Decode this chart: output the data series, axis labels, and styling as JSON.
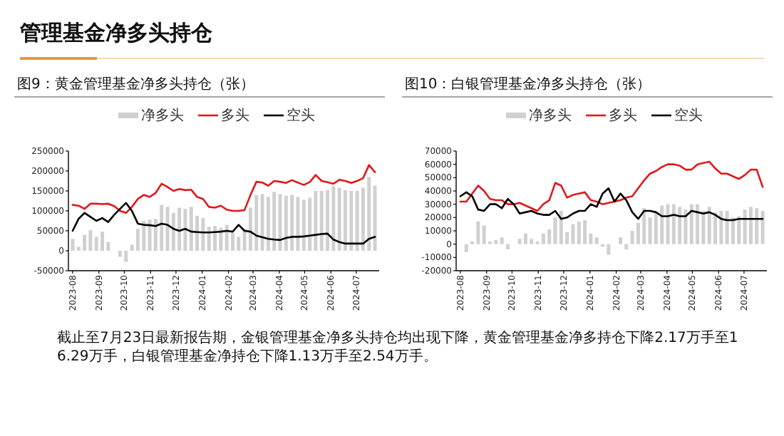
{
  "chart_data": [
    {
      "type": "other",
      "title": "管理基金净多头持仓",
      "annotations": [
        "截止至7月23日最新报告期，金银管理基金净多头持仓均出现下降，黄金管理基金净多持仓下降2.17万手至16.29万手，白银管理基金净持仓下降1.13万手至2.54万手。"
      ]
    },
    {
      "type": "bar",
      "title": "图9：黄金管理基金净多头持仓（张）",
      "legend": "top",
      "x": [
        "2023-08-01",
        "2023-08-08",
        "2023-08-15",
        "2023-08-22",
        "2023-08-29",
        "2023-09-05",
        "2023-09-12",
        "2023-09-19",
        "2023-09-26",
        "2023-10-03",
        "2023-10-10",
        "2023-10-17",
        "2023-10-24",
        "2023-10-31",
        "2023-11-07",
        "2023-11-14",
        "2023-11-21",
        "2023-11-28",
        "2023-12-05",
        "2023-12-12",
        "2023-12-19",
        "2023-12-26",
        "2024-01-02",
        "2024-01-09",
        "2024-01-16",
        "2024-01-23",
        "2024-01-30",
        "2024-02-06",
        "2024-02-13",
        "2024-02-20",
        "2024-02-27",
        "2024-03-05",
        "2024-03-12",
        "2024-03-19",
        "2024-03-26",
        "2024-04-02",
        "2024-04-09",
        "2024-04-16",
        "2024-04-23",
        "2024-04-30",
        "2024-05-07",
        "2024-05-14",
        "2024-05-21",
        "2024-05-28",
        "2024-06-04",
        "2024-06-11",
        "2024-06-18",
        "2024-06-25",
        "2024-07-02",
        "2024-07-09",
        "2024-07-16",
        "2024-07-23"
      ],
      "xlim": [
        "2023-07-27",
        "2024-07-28"
      ],
      "xticks": [
        "2023-08",
        "2023-09",
        "2023-10",
        "2023-11",
        "2023-12",
        "2024-01",
        "2024-02",
        "2024-03",
        "2024-04",
        "2024-05",
        "2024-06",
        "2024-07"
      ],
      "ylim": [
        -50000,
        250000
      ],
      "yticks": [
        -50000,
        0,
        50000,
        100000,
        150000,
        200000,
        250000
      ],
      "series": [
        {
          "name": "净多头",
          "type": "bar",
          "color": "#d0d0d0",
          "values": [
            30000,
            10000,
            40000,
            52000,
            35000,
            48000,
            22000,
            null,
            -15000,
            -28000,
            15000,
            55000,
            75000,
            78000,
            80000,
            115000,
            110000,
            95000,
            108000,
            105000,
            110000,
            88000,
            82000,
            60000,
            62000,
            58000,
            65000,
            45000,
            35000,
            55000,
            108000,
            140000,
            142000,
            135000,
            148000,
            142000,
            138000,
            140000,
            135000,
            128000,
            133000,
            150000,
            150000,
            152000,
            162000,
            158000,
            152000,
            150000,
            150000,
            158000,
            185000,
            163000
          ]
        },
        {
          "name": "多头",
          "type": "line",
          "color": "#e0191b",
          "values": [
            115000,
            113000,
            105000,
            118000,
            118000,
            117000,
            118000,
            112000,
            100000,
            95000,
            110000,
            130000,
            140000,
            135000,
            145000,
            168000,
            160000,
            150000,
            155000,
            152000,
            153000,
            135000,
            130000,
            110000,
            108000,
            113000,
            103000,
            100000,
            100000,
            102000,
            140000,
            173000,
            171000,
            163000,
            175000,
            173000,
            170000,
            177000,
            171000,
            165000,
            172000,
            190000,
            175000,
            172000,
            168000,
            178000,
            175000,
            170000,
            175000,
            182000,
            215000,
            197000
          ]
        },
        {
          "name": "空头",
          "type": "line",
          "color": "#000000",
          "values": [
            50000,
            80000,
            95000,
            85000,
            75000,
            82000,
            72000,
            90000,
            105000,
            120000,
            100000,
            68000,
            65000,
            64000,
            62000,
            68000,
            65000,
            55000,
            50000,
            55000,
            48000,
            47000,
            46000,
            46000,
            47000,
            48000,
            50000,
            48000,
            65000,
            50000,
            48000,
            38000,
            34000,
            30000,
            28000,
            27000,
            32000,
            35000,
            35000,
            36000,
            38000,
            40000,
            42000,
            43000,
            28000,
            22000,
            18000,
            18000,
            18000,
            18000,
            30000,
            35000
          ]
        }
      ]
    },
    {
      "type": "bar",
      "title": "图10：白银管理基金净多头持仓（张）",
      "legend": "top",
      "x": [
        "2023-08-01",
        "2023-08-08",
        "2023-08-15",
        "2023-08-22",
        "2023-08-29",
        "2023-09-05",
        "2023-09-12",
        "2023-09-19",
        "2023-09-26",
        "2023-10-03",
        "2023-10-10",
        "2023-10-17",
        "2023-10-24",
        "2023-10-31",
        "2023-11-07",
        "2023-11-14",
        "2023-11-21",
        "2023-11-28",
        "2023-12-05",
        "2023-12-12",
        "2023-12-19",
        "2023-12-26",
        "2024-01-02",
        "2024-01-09",
        "2024-01-16",
        "2024-01-23",
        "2024-01-30",
        "2024-02-06",
        "2024-02-13",
        "2024-02-20",
        "2024-02-27",
        "2024-03-05",
        "2024-03-12",
        "2024-03-19",
        "2024-03-26",
        "2024-04-02",
        "2024-04-09",
        "2024-04-16",
        "2024-04-23",
        "2024-04-30",
        "2024-05-07",
        "2024-05-14",
        "2024-05-21",
        "2024-05-28",
        "2024-06-04",
        "2024-06-11",
        "2024-06-18",
        "2024-06-25",
        "2024-07-02",
        "2024-07-09",
        "2024-07-16",
        "2024-07-23"
      ],
      "xlim": [
        "2023-07-27",
        "2024-07-28"
      ],
      "xticks": [
        "2023-08",
        "2023-09",
        "2023-10",
        "2023-11",
        "2023-12",
        "2024-01",
        "2024-02",
        "2024-03",
        "2024-04",
        "2024-05",
        "2024-06",
        "2024-07"
      ],
      "ylim": [
        -20000,
        70000
      ],
      "yticks": [
        -20000,
        -10000,
        0,
        10000,
        20000,
        30000,
        40000,
        50000,
        60000,
        70000
      ],
      "series": [
        {
          "name": "净多头",
          "type": "bar",
          "color": "#d0d0d0",
          "values": [
            0,
            -6000,
            2000,
            17000,
            14000,
            2000,
            3000,
            5000,
            -4000,
            0,
            4000,
            8000,
            4000,
            2000,
            8000,
            11000,
            20000,
            25000,
            9000,
            15000,
            17000,
            18000,
            8000,
            5000,
            -2000,
            -8000,
            0,
            5000,
            -4000,
            10000,
            16000,
            27000,
            20000,
            24000,
            29000,
            30000,
            30000,
            28000,
            26000,
            30000,
            30000,
            25000,
            28000,
            24000,
            25000,
            25000,
            20000,
            21000,
            26000,
            28000,
            27000,
            25000
          ]
        },
        {
          "name": "多头",
          "type": "line",
          "color": "#e0191b",
          "values": [
            32000,
            32000,
            38000,
            44000,
            40000,
            34000,
            33000,
            33000,
            30000,
            30000,
            31000,
            29000,
            27000,
            25000,
            30000,
            33000,
            46000,
            44000,
            35000,
            37000,
            38000,
            39000,
            33000,
            32000,
            30000,
            31000,
            32000,
            33000,
            35000,
            36000,
            42000,
            48000,
            53000,
            55000,
            58000,
            60000,
            60000,
            59000,
            56000,
            56000,
            60000,
            61000,
            62000,
            57000,
            53000,
            53000,
            51000,
            49000,
            52000,
            56000,
            56000,
            43000
          ]
        },
        {
          "name": "空头",
          "type": "line",
          "color": "#000000",
          "values": [
            36000,
            39000,
            36000,
            26000,
            25000,
            30000,
            30000,
            27000,
            34000,
            30000,
            23000,
            24000,
            25000,
            23000,
            22000,
            22000,
            25000,
            19000,
            20000,
            23000,
            25000,
            25000,
            30000,
            28000,
            38000,
            42000,
            32000,
            38000,
            33000,
            24000,
            19000,
            25000,
            25000,
            24000,
            21000,
            21000,
            22000,
            21000,
            21000,
            25000,
            24000,
            23000,
            24000,
            22000,
            19000,
            18000,
            18000,
            19000,
            19000,
            19000,
            19000,
            19000
          ]
        }
      ]
    }
  ]
}
